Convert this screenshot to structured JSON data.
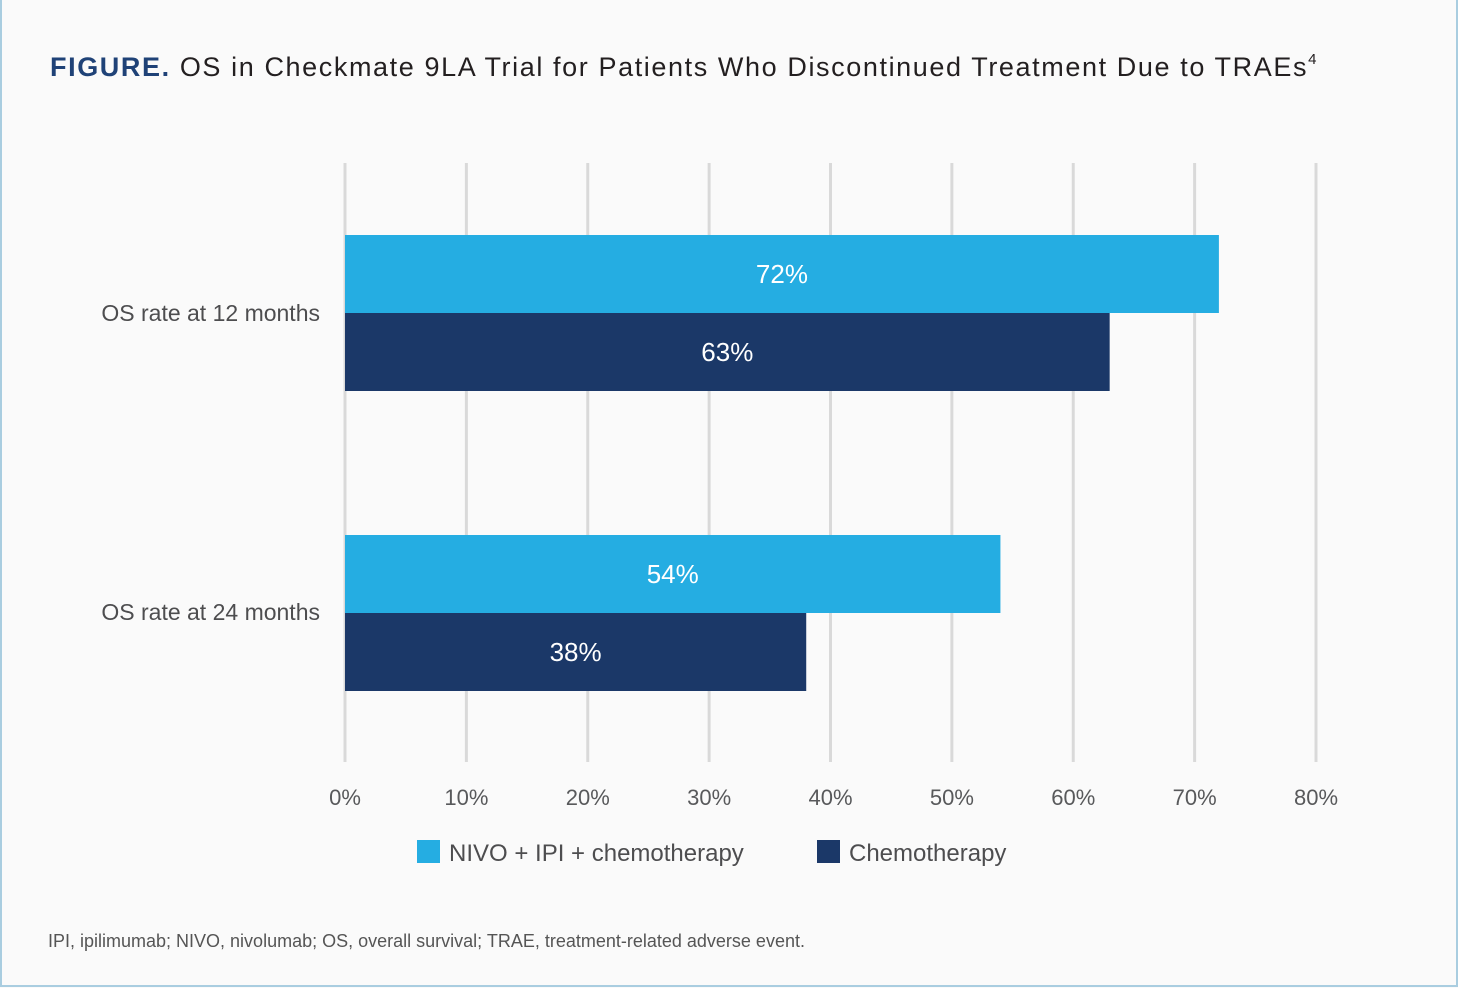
{
  "title": {
    "prefix": "FIGURE.",
    "text": "OS in Checkmate 9LA Trial for Patients Who Discontinued Treatment Due to TRAEs",
    "superscript": "4"
  },
  "footnote": "IPI, ipilimumab; NIVO, nivolumab; OS, overall survival; TRAE, treatment-related adverse event.",
  "chart_data": {
    "type": "bar",
    "orientation": "horizontal",
    "title": "OS in Checkmate 9LA Trial for Patients Who Discontinued Treatment Due to TRAEs",
    "categories": [
      "OS rate at 12 months",
      "OS rate at 24 months"
    ],
    "series": [
      {
        "name": "NIVO + IPI + chemotherapy",
        "color": "#25ade2",
        "values": [
          72,
          54
        ],
        "labels": [
          "72%",
          "54%"
        ]
      },
      {
        "name": "Chemotherapy",
        "color": "#1b3868",
        "values": [
          63,
          38
        ],
        "labels": [
          "63%",
          "38%"
        ]
      }
    ],
    "xlim": [
      0,
      80
    ],
    "xticks": [
      0,
      10,
      20,
      30,
      40,
      50,
      60,
      70,
      80
    ],
    "xtick_labels": [
      "0%",
      "10%",
      "20%",
      "30%",
      "40%",
      "50%",
      "60%",
      "70%",
      "80%"
    ],
    "xlabel": "",
    "ylabel": "",
    "grid": true,
    "legend_position": "bottom-center"
  }
}
